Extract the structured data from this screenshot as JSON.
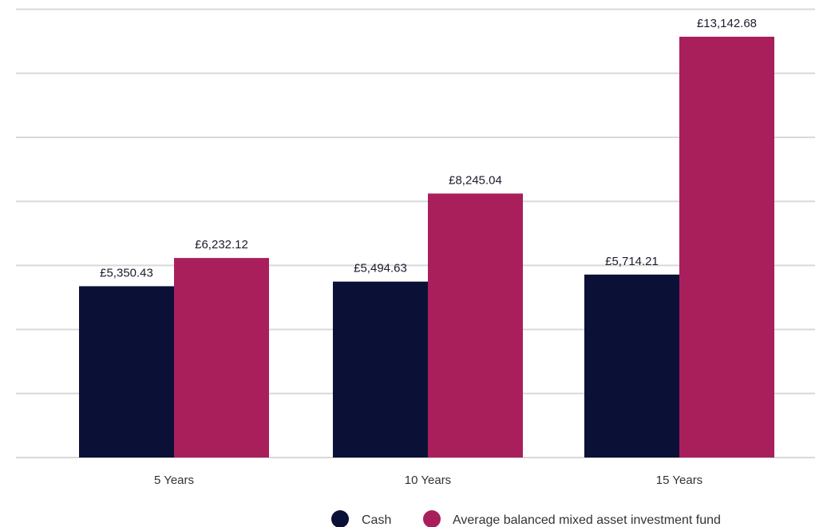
{
  "chart_data": {
    "type": "bar",
    "categories": [
      "5 Years",
      "10 Years",
      "15 Years"
    ],
    "series": [
      {
        "name": "Cash",
        "color": "#0b1036",
        "values": [
          5350.43,
          5494.63,
          5714.21
        ],
        "labels": [
          "£5,350.43",
          "£5,494.63",
          "£5,714.21"
        ]
      },
      {
        "name": "Average balanced mixed asset investment fund",
        "color": "#a91f5c",
        "values": [
          6232.12,
          8245.04,
          13142.68
        ],
        "labels": [
          "£6,232.12",
          "£8,245.04",
          "£13,142.68"
        ]
      }
    ],
    "ylim": [
      0,
      14000
    ],
    "grid": true,
    "legend": "bottom-right",
    "title": "",
    "xlabel": "",
    "ylabel": ""
  }
}
